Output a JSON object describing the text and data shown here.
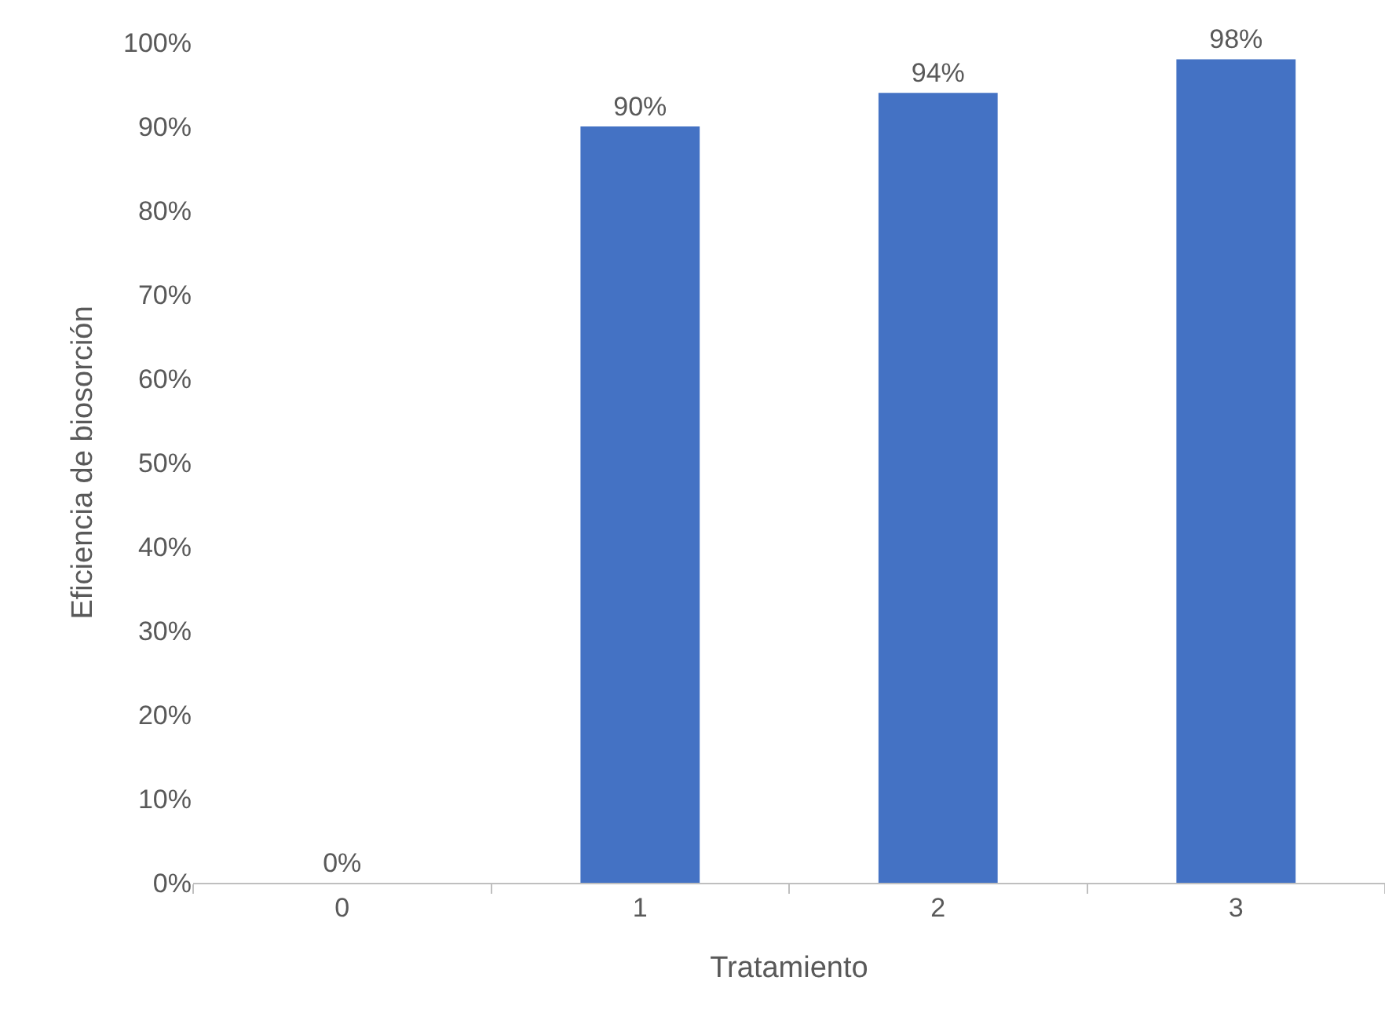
{
  "chart_data": {
    "type": "bar",
    "xlabel": "Tratamiento",
    "ylabel": "Eficiencia de biosorción",
    "categories": [
      "0",
      "1",
      "2",
      "3"
    ],
    "values": [
      0,
      90,
      94,
      98
    ],
    "value_labels": [
      "0%",
      "90%",
      "94%",
      "98%"
    ],
    "color": "#4472c4",
    "ylim": [
      0,
      100
    ],
    "yticks": [
      {
        "value": 0,
        "label": "0%"
      },
      {
        "value": 10,
        "label": "10%"
      },
      {
        "value": 20,
        "label": "20%"
      },
      {
        "value": 30,
        "label": "30%"
      },
      {
        "value": 40,
        "label": "40%"
      },
      {
        "value": 50,
        "label": "50%"
      },
      {
        "value": 60,
        "label": "60%"
      },
      {
        "value": 70,
        "label": "70%"
      },
      {
        "value": 80,
        "label": "80%"
      },
      {
        "value": 90,
        "label": "90%"
      },
      {
        "value": 100,
        "label": "100%"
      }
    ],
    "grid": false,
    "legend": false
  }
}
